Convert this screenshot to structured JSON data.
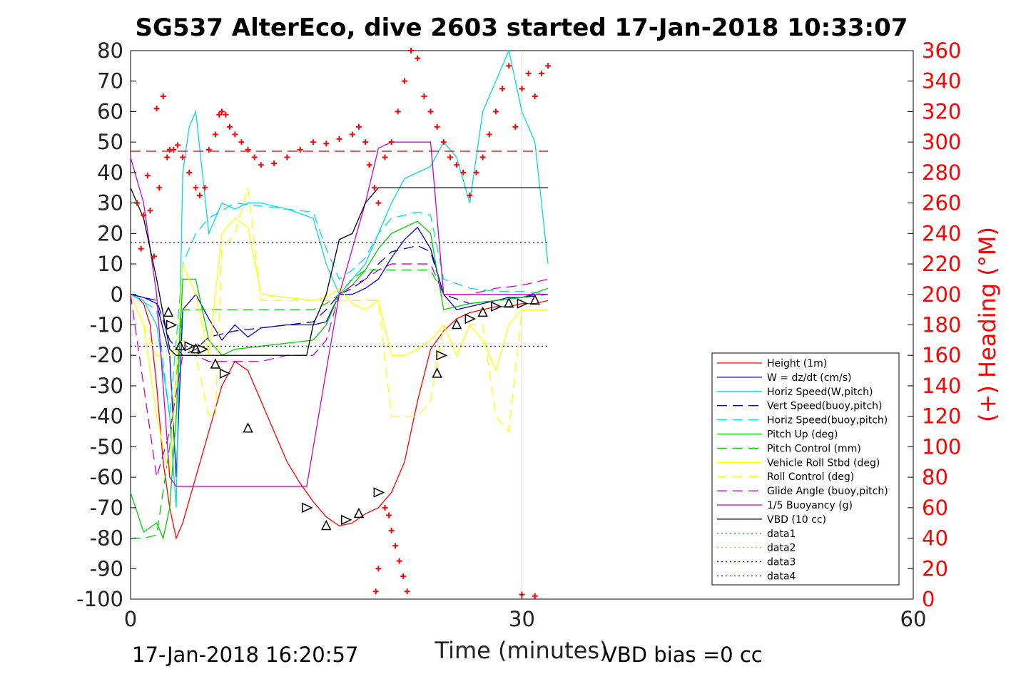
{
  "chart_data": {
    "type": "line",
    "title": "SG537 AlterEco, dive 2603 started 17-Jan-2018 10:33:07",
    "xlabel": "Time (minutes)",
    "ylabel_right": "(+) Heading (°M)",
    "xlim": [
      0,
      60
    ],
    "ylim_left": [
      -100,
      80
    ],
    "ylim_right": [
      0,
      360
    ],
    "xticks": [
      "0",
      "30",
      "60"
    ],
    "yticks_left": [
      "80",
      "70",
      "60",
      "50",
      "40",
      "30",
      "20",
      "10",
      "0",
      "-10",
      "-20",
      "-30",
      "-40",
      "-50",
      "-60",
      "-70",
      "-80",
      "-90",
      "-100"
    ],
    "yticks_right": [
      "360",
      "340",
      "320",
      "300",
      "280",
      "260",
      "240",
      "220",
      "200",
      "180",
      "160",
      "140",
      "120",
      "100",
      "80",
      "60",
      "40",
      "20",
      "0"
    ],
    "grid": "x-only",
    "legend_position": "lower-right",
    "footer_left": "17-Jan-2018 16:20:57",
    "footer_right": "VBD bias =0 cc",
    "legend": [
      {
        "name": "Height (1m)",
        "color": "#ff0000",
        "dash": "solid"
      },
      {
        "name": "W = dz/dt (cm/s)",
        "color": "#0000cc",
        "dash": "solid"
      },
      {
        "name": "Horiz Speed(W,pitch)",
        "color": "#00dddd",
        "dash": "solid"
      },
      {
        "name": "Vert Speed(buoy,pitch)",
        "color": "#0000cc",
        "dash": "dashed"
      },
      {
        "name": "Horiz Speed(buoy,pitch)",
        "color": "#00dddd",
        "dash": "dashed"
      },
      {
        "name": "Pitch Up (deg)",
        "color": "#00cc00",
        "dash": "solid"
      },
      {
        "name": "Pitch Control (mm)",
        "color": "#00cc00",
        "dash": "dashed"
      },
      {
        "name": "Vehicle Roll Stbd (deg)",
        "color": "#ffff00",
        "dash": "solid"
      },
      {
        "name": "Roll Control (deg)",
        "color": "#ffff00",
        "dash": "dashed"
      },
      {
        "name": "Glide Angle (buoy,pitch)",
        "color": "#cc00cc",
        "dash": "dashed"
      },
      {
        "name": "1/5 Buoyancy (g)",
        "color": "#cc00cc",
        "dash": "solid"
      },
      {
        "name": "VBD (10 cc)",
        "color": "#000000",
        "dash": "solid"
      },
      {
        "name": "data1",
        "color": "#00cc00",
        "dash": "dotted"
      },
      {
        "name": "data2",
        "color": "#99dd00",
        "dash": "dotted"
      },
      {
        "name": "data3",
        "color": "#000099",
        "dash": "dotted"
      },
      {
        "name": "data4",
        "color": "#0000cc",
        "dash": "dotted"
      }
    ],
    "series": [
      {
        "name": "Height (1m)",
        "color": "#ff0000",
        "dash": "solid",
        "x": [
          0.5,
          1,
          1.5,
          2,
          2.5,
          3,
          3.5,
          4,
          5,
          6,
          7,
          8,
          9,
          10,
          11,
          12,
          13,
          14,
          15,
          16,
          17,
          18,
          19,
          20,
          21,
          22,
          23,
          24,
          25,
          26,
          27,
          28,
          29,
          30,
          31,
          32
        ],
        "y": [
          -1,
          -3,
          -10,
          -30,
          -55,
          -70,
          -80,
          -75,
          -60,
          -45,
          -30,
          -22,
          -25,
          -35,
          -45,
          -55,
          -62,
          -68,
          -73,
          -76,
          -75,
          -72,
          -70,
          -65,
          -55,
          -35,
          -18,
          -12,
          -8,
          -6,
          -5,
          -4,
          -4,
          -3,
          -3,
          -2
        ]
      },
      {
        "name": "W = dz/dt (cm/s)",
        "color": "#0000cc",
        "dash": "solid",
        "x": [
          0,
          1,
          2,
          3,
          3.5,
          4,
          5,
          6,
          7,
          8,
          9,
          10,
          12,
          14,
          15,
          16,
          17,
          18,
          19,
          20,
          21,
          22,
          23,
          24,
          25,
          26,
          27,
          28,
          29,
          30,
          31,
          32
        ],
        "y": [
          0,
          -1,
          -3,
          -20,
          -60,
          -5,
          0,
          -8,
          -15,
          -10,
          -14,
          -11,
          -10,
          -10,
          -9,
          0,
          0,
          2,
          5,
          12,
          18,
          22,
          15,
          0,
          -5,
          -4,
          -3,
          -2,
          -1,
          -1,
          0,
          0
        ]
      },
      {
        "name": "Horiz Speed(W,pitch)",
        "color": "#00dddd",
        "dash": "solid",
        "x": [
          0,
          1,
          2,
          3,
          3.5,
          4,
          4.5,
          5,
          6,
          7,
          8,
          9,
          10,
          12,
          14,
          15,
          16,
          17,
          18,
          19,
          20,
          21,
          22,
          23,
          24,
          25,
          26,
          27,
          28,
          29,
          30,
          31,
          32
        ],
        "y": [
          0,
          -2,
          -10,
          -40,
          -70,
          40,
          55,
          60,
          20,
          30,
          28,
          30,
          30,
          28,
          25,
          10,
          0,
          5,
          10,
          20,
          30,
          38,
          40,
          42,
          50,
          45,
          30,
          60,
          70,
          80,
          60,
          50,
          10
        ]
      },
      {
        "name": "Vert Speed(buoy,pitch)",
        "color": "#0000cc",
        "dash": "dashed",
        "x": [
          0,
          2,
          3,
          4,
          5,
          6,
          8,
          10,
          12,
          14,
          15,
          16,
          17,
          18,
          19,
          20,
          22,
          23,
          24,
          26,
          28,
          30,
          32
        ],
        "y": [
          0,
          -2,
          -15,
          -20,
          -18,
          -14,
          -12,
          -11,
          -10,
          -9,
          -5,
          0,
          2,
          5,
          10,
          14,
          16,
          14,
          0,
          -3,
          -2,
          -1,
          0
        ]
      },
      {
        "name": "Horiz Speed(buoy,pitch)",
        "color": "#00dddd",
        "dash": "dashed",
        "x": [
          0,
          2,
          3,
          4,
          5,
          6,
          8,
          10,
          12,
          14,
          15,
          16,
          17,
          18,
          19,
          20,
          22,
          23,
          24,
          26,
          28,
          30,
          32
        ],
        "y": [
          0,
          -5,
          -40,
          10,
          20,
          25,
          30,
          29,
          28,
          27,
          15,
          5,
          8,
          12,
          20,
          25,
          27,
          26,
          5,
          2,
          1,
          1,
          0
        ]
      },
      {
        "name": "Pitch Up (deg)",
        "color": "#00cc00",
        "dash": "solid",
        "x": [
          0,
          1,
          2,
          2.5,
          3,
          3.5,
          4,
          5,
          6,
          7,
          8,
          10,
          12,
          14,
          15,
          16,
          17,
          18,
          19,
          20,
          22,
          23,
          24,
          26,
          28,
          30,
          32
        ],
        "y": [
          -65,
          -78,
          -75,
          -80,
          -70,
          -40,
          5,
          5,
          -15,
          -20,
          -18,
          -17,
          -16,
          -15,
          -10,
          0,
          3,
          8,
          15,
          20,
          24,
          20,
          -5,
          -3,
          -2,
          -1,
          2
        ]
      },
      {
        "name": "Pitch Control (mm)",
        "color": "#00cc00",
        "dash": "dashed",
        "x": [
          0,
          1,
          2,
          3,
          4,
          5,
          6,
          8,
          10,
          12,
          14,
          15,
          16,
          17,
          18,
          19,
          20,
          21,
          22,
          23,
          24,
          26,
          28,
          30,
          32
        ],
        "y": [
          -80,
          -80,
          -79,
          -50,
          -5,
          -5,
          -5,
          -5,
          -5,
          -5,
          -5,
          -3,
          0,
          5,
          8,
          8,
          8,
          8,
          8,
          8,
          0,
          0,
          0,
          0,
          0
        ]
      },
      {
        "name": "Vehicle Roll Stbd (deg)",
        "color": "#ffff00",
        "dash": "solid",
        "x": [
          0,
          1,
          2,
          3,
          4,
          5,
          6,
          7,
          8,
          9,
          10,
          12,
          14,
          15,
          16,
          17,
          18,
          19,
          20,
          21,
          22,
          23,
          24,
          25,
          26,
          27,
          28,
          29,
          30,
          31,
          32
        ],
        "y": [
          0,
          -10,
          -40,
          -60,
          10,
          0,
          -20,
          20,
          25,
          22,
          0,
          -1,
          -2,
          -1,
          2,
          -3,
          -5,
          -2,
          -20,
          -20,
          -18,
          -15,
          -10,
          -20,
          -10,
          -15,
          -25,
          -10,
          -5,
          -5,
          -5
        ]
      },
      {
        "name": "Roll Control (deg)",
        "color": "#ffff00",
        "dash": "dashed",
        "x": [
          0,
          2,
          3,
          4,
          5,
          6,
          6.5,
          7,
          8,
          9,
          10,
          12,
          14,
          16,
          18,
          19,
          20,
          21,
          22,
          23,
          24,
          25,
          26,
          27,
          28,
          29,
          30,
          31,
          32
        ],
        "y": [
          0,
          -20,
          -20,
          -15,
          -20,
          -40,
          -40,
          15,
          20,
          35,
          -2,
          -2,
          -2,
          -2,
          -2,
          -2,
          -40,
          -40,
          -40,
          -35,
          -10,
          -20,
          -10,
          -10,
          -40,
          -45,
          -5,
          -5,
          -5
        ]
      },
      {
        "name": "Glide Angle (buoy,pitch)",
        "color": "#cc00cc",
        "dash": "dashed",
        "x": [
          0,
          1,
          1.5,
          2,
          3,
          4,
          5,
          6,
          8,
          10,
          12,
          14,
          15,
          16,
          17,
          18,
          19,
          20,
          22,
          23,
          24,
          26,
          28,
          30,
          32
        ],
        "y": [
          0,
          -30,
          -45,
          -60,
          -45,
          -20,
          -20,
          -22,
          -22,
          -22,
          -20,
          -20,
          -15,
          0,
          3,
          5,
          8,
          10,
          10,
          10,
          0,
          0,
          2,
          3,
          5
        ]
      },
      {
        "name": "1/5 Buoyancy (g)",
        "color": "#cc00cc",
        "dash": "solid",
        "x": [
          0,
          1,
          2,
          3,
          3.5,
          5,
          10,
          13.5,
          15,
          16,
          17,
          18,
          19,
          20,
          21,
          22,
          23,
          24,
          25,
          26,
          28,
          30,
          32
        ],
        "y": [
          45,
          30,
          0,
          -60,
          -63,
          -63,
          -63,
          -63,
          -25,
          0,
          15,
          30,
          48,
          50,
          50,
          50,
          50,
          0,
          0,
          0,
          0,
          0,
          0
        ]
      },
      {
        "name": "VBD (10 cc)",
        "color": "#000000",
        "dash": "solid",
        "x": [
          0,
          1,
          2,
          3,
          3.5,
          5,
          8,
          10,
          13.5,
          14,
          15,
          16,
          17,
          18,
          19,
          20,
          22,
          24,
          26,
          28,
          30,
          32
        ],
        "y": [
          35,
          25,
          5,
          -18,
          -20,
          -20,
          -20,
          -20,
          -20,
          -10,
          0,
          18,
          20,
          30,
          35,
          35,
          35,
          35,
          35,
          35,
          35,
          35
        ]
      },
      {
        "name": "data1",
        "color": "#00cc00",
        "dash": "dotted",
        "x": [],
        "y": []
      },
      {
        "name": "data2",
        "color": "#99dd00",
        "dash": "dotted",
        "x": [],
        "y": []
      },
      {
        "name": "data3",
        "color": "#000099",
        "dash": "dotted",
        "x": [
          0,
          32
        ],
        "y": [
          17,
          17
        ]
      },
      {
        "name": "data4",
        "color": "#0000cc",
        "dash": "dotted",
        "x": [
          0,
          32
        ],
        "y": [
          -17,
          -17
        ]
      }
    ],
    "heading_ref": {
      "name": "heading-reference",
      "color": "#cc0000",
      "dash": "dashed",
      "x": [
        0,
        32
      ],
      "y": [
        47,
        47
      ]
    },
    "heading_points": {
      "axis": "right",
      "color": "#ff0000",
      "marker": "plus",
      "points": [
        [
          0.5,
          260
        ],
        [
          0.8,
          230
        ],
        [
          1,
          252
        ],
        [
          1.3,
          278
        ],
        [
          1.5,
          255
        ],
        [
          1.8,
          225
        ],
        [
          2,
          322
        ],
        [
          2.2,
          270
        ],
        [
          2.5,
          330
        ],
        [
          2.8,
          290
        ],
        [
          3,
          295
        ],
        [
          3.3,
          295
        ],
        [
          3.6,
          298
        ],
        [
          4,
          290
        ],
        [
          4.5,
          280
        ],
        [
          5,
          270
        ],
        [
          5.3,
          265
        ],
        [
          5.7,
          270
        ],
        [
          6,
          295
        ],
        [
          6.5,
          305
        ],
        [
          6.8,
          318
        ],
        [
          7,
          320
        ],
        [
          7.3,
          318
        ],
        [
          7.6,
          310
        ],
        [
          8,
          305
        ],
        [
          8.5,
          300
        ],
        [
          9,
          295
        ],
        [
          9.5,
          290
        ],
        [
          10,
          285
        ],
        [
          11,
          286
        ],
        [
          12,
          290
        ],
        [
          13,
          295
        ],
        [
          14,
          300
        ],
        [
          15,
          299
        ],
        [
          16,
          302
        ],
        [
          17,
          305
        ],
        [
          17.5,
          310
        ],
        [
          18,
          300
        ],
        [
          18.3,
          285
        ],
        [
          18.7,
          270
        ],
        [
          19,
          260
        ],
        [
          19.5,
          290
        ],
        [
          20,
          300
        ],
        [
          20.5,
          320
        ],
        [
          21,
          340
        ],
        [
          21.5,
          360
        ],
        [
          22,
          355
        ],
        [
          22.5,
          330
        ],
        [
          23,
          320
        ],
        [
          23.5,
          310
        ],
        [
          24,
          300
        ],
        [
          24.5,
          290
        ],
        [
          25,
          285
        ],
        [
          25.5,
          280
        ],
        [
          26,
          265
        ],
        [
          26.5,
          280
        ],
        [
          27,
          290
        ],
        [
          27.5,
          305
        ],
        [
          28,
          320
        ],
        [
          28.5,
          335
        ],
        [
          29,
          350
        ],
        [
          29.5,
          310
        ],
        [
          30,
          335
        ],
        [
          30.5,
          345
        ],
        [
          31,
          330
        ],
        [
          31.5,
          345
        ],
        [
          32,
          350
        ],
        [
          19.5,
          60
        ],
        [
          19.8,
          55
        ],
        [
          20,
          45
        ],
        [
          20.3,
          35
        ],
        [
          20.6,
          25
        ],
        [
          20.9,
          15
        ],
        [
          21.2,
          5
        ],
        [
          19,
          20
        ],
        [
          18.8,
          5
        ],
        [
          30,
          3
        ],
        [
          31,
          2
        ]
      ]
    },
    "triangles": {
      "color": "#000000",
      "points": [
        [
          2.9,
          -6
        ],
        [
          3.1,
          -10
        ],
        [
          3.8,
          -17
        ],
        [
          4.5,
          -17
        ],
        [
          5,
          -18
        ],
        [
          5.5,
          -18
        ],
        [
          6.5,
          -23
        ],
        [
          7.2,
          -26
        ],
        [
          9,
          -44
        ],
        [
          13.5,
          -70
        ],
        [
          15,
          -76
        ],
        [
          16.5,
          -74
        ],
        [
          17.5,
          -72
        ],
        [
          19,
          -65
        ],
        [
          23.5,
          -26
        ],
        [
          23.8,
          -20
        ],
        [
          25,
          -10
        ],
        [
          26,
          -8
        ],
        [
          27,
          -6
        ],
        [
          28,
          -4
        ],
        [
          29,
          -3
        ],
        [
          30,
          -3
        ],
        [
          31,
          -2
        ]
      ]
    }
  }
}
